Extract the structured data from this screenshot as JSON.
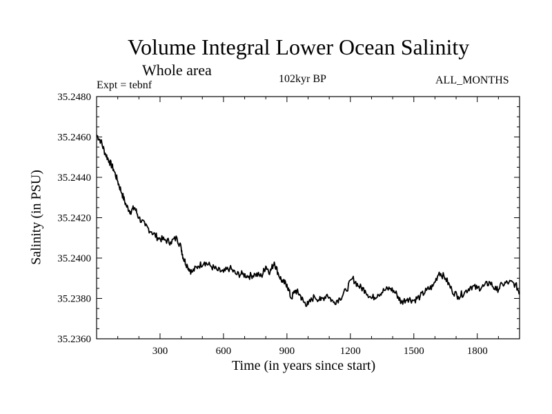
{
  "chart_data": {
    "type": "line",
    "title": "Volume Integral Lower Ocean Salinity",
    "subtitle": "Whole area",
    "left_note": "Expt = tebnf",
    "center_note": "102kyr BP",
    "right_note": "ALL_MONTHS",
    "xlabel": "Time (in years since start)",
    "ylabel": "Salinity (in PSU)",
    "xlim": [
      0,
      2000
    ],
    "ylim": [
      35.236,
      35.248
    ],
    "grid": false,
    "x_ticks": [
      300,
      600,
      900,
      1200,
      1500,
      1800
    ],
    "x_tick_labels": [
      "300",
      "600",
      "900",
      "1200",
      "1500",
      "1800"
    ],
    "y_ticks": [
      35.236,
      35.238,
      35.24,
      35.242,
      35.244,
      35.246,
      35.248
    ],
    "y_tick_labels": [
      "35.2360",
      "35.2380",
      "35.2400",
      "35.2420",
      "35.2440",
      "35.2460",
      "35.2480"
    ],
    "series": [
      {
        "name": "salinity",
        "x": [
          0,
          20,
          40,
          60,
          80,
          100,
          120,
          140,
          160,
          180,
          200,
          230,
          260,
          290,
          320,
          350,
          380,
          400,
          410,
          430,
          450,
          480,
          510,
          540,
          570,
          600,
          630,
          660,
          690,
          720,
          750,
          780,
          800,
          820,
          840,
          860,
          880,
          900,
          920,
          940,
          960,
          980,
          1000,
          1030,
          1060,
          1090,
          1120,
          1150,
          1180,
          1210,
          1240,
          1270,
          1300,
          1330,
          1360,
          1390,
          1420,
          1440,
          1470,
          1500,
          1530,
          1560,
          1590,
          1620,
          1650,
          1680,
          1710,
          1740,
          1770,
          1800,
          1830,
          1860,
          1890,
          1920,
          1950,
          1980,
          2000
        ],
        "y": [
          35.2461,
          35.2458,
          35.2452,
          35.2448,
          35.2444,
          35.2438,
          35.2432,
          35.2426,
          35.2423,
          35.2425,
          35.242,
          35.2416,
          35.2413,
          35.241,
          35.2409,
          35.2408,
          35.241,
          35.2405,
          35.24,
          35.2396,
          35.2393,
          35.2396,
          35.2398,
          35.2396,
          35.2394,
          35.2393,
          35.2395,
          35.2392,
          35.2392,
          35.2391,
          35.2392,
          35.2391,
          35.2396,
          35.2393,
          35.2398,
          35.2392,
          35.2388,
          35.2387,
          35.238,
          35.2384,
          35.2382,
          35.2378,
          35.2377,
          35.2381,
          35.2379,
          35.2382,
          35.2378,
          35.238,
          35.2384,
          35.239,
          35.2386,
          35.2384,
          35.238,
          35.2382,
          35.2384,
          35.2385,
          35.2382,
          35.2378,
          35.238,
          35.2379,
          35.2381,
          35.2384,
          35.2386,
          35.2393,
          35.239,
          35.2384,
          35.2381,
          35.2383,
          35.2386,
          35.2385,
          35.2386,
          35.2388,
          35.2384,
          35.2387,
          35.2388,
          35.2387,
          35.2383
        ]
      }
    ]
  }
}
